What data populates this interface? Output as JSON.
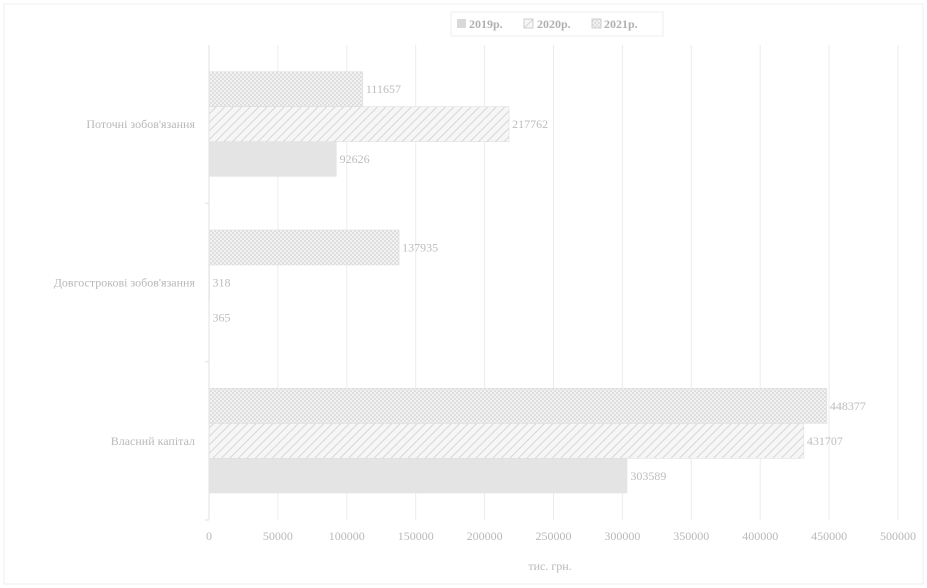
{
  "chart_data": {
    "type": "bar",
    "orientation": "horizontal",
    "categories": [
      "Власний капітал",
      "Довгострокові зобов'язання",
      "Поточні зобов'язання"
    ],
    "series": [
      {
        "name": "2019р.",
        "values": [
          303589,
          365,
          92626
        ],
        "data_labels": [
          "303589",
          "365",
          "92626"
        ],
        "pattern": "solid",
        "color": "#e4e4e4"
      },
      {
        "name": "2020р.",
        "values": [
          431707,
          318,
          217762
        ],
        "data_labels": [
          "431707",
          "318",
          "217762"
        ],
        "pattern": "diagonal",
        "color": "#e0e0e0"
      },
      {
        "name": "2021р.",
        "values": [
          448377,
          137935,
          111657
        ],
        "data_labels": [
          "448377",
          "137935",
          "111657"
        ],
        "pattern": "crosshatch",
        "color": "#e2e2e2"
      }
    ],
    "xlim": [
      0,
      500000
    ],
    "x_ticks": [
      "0",
      "50000",
      "100000",
      "150000",
      "200000",
      "250000",
      "300000",
      "350000",
      "400000",
      "450000",
      "500000"
    ],
    "xlabel": "тис. грн.",
    "grid": true,
    "legend_position": "top"
  },
  "legend": {
    "item_2019": "2019р.",
    "item_2020": "2020р.",
    "item_2021": "2021р."
  },
  "colors": {
    "grid": "#ececec",
    "axis": "#e2e2e2",
    "frame": "#efefef"
  }
}
